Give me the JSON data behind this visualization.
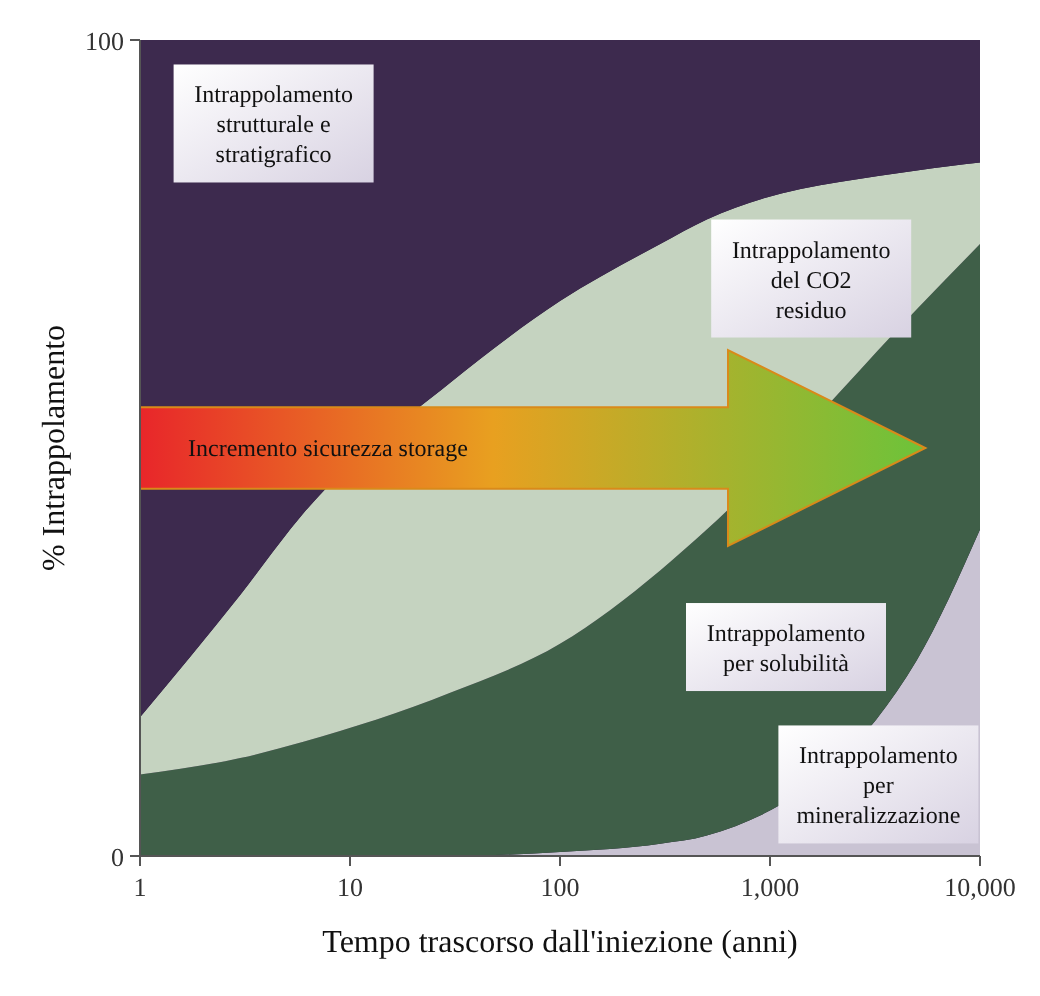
{
  "chart_data": {
    "type": "area",
    "stacked": true,
    "xlabel": "Tempo trascorso dall'iniezione (anni)",
    "ylabel": "% Intrappolamento",
    "x": [
      1,
      3,
      6,
      30,
      100,
      300,
      500,
      5000,
      10000
    ],
    "log": "x",
    "xlim": [
      1,
      10000
    ],
    "xticks": [
      1,
      10,
      100,
      {
        "value": 1000,
        "label": "1,000"
      },
      {
        "value": 10000,
        "label": "10,000"
      }
    ],
    "ylim": [
      0,
      100
    ],
    "yticks": [
      0,
      100
    ],
    "grid": false,
    "series": [
      {
        "name": "Intrappolamento per mineralizzazione",
        "color": "#c9c3d3",
        "values": [
          0,
          0,
          0,
          0,
          0.5,
          1.5,
          2.5,
          24,
          40
        ]
      },
      {
        "name": "Intrappolamento per solubilità",
        "color": "#3f5f48",
        "values": [
          10,
          12,
          14,
          20,
          25.5,
          33.5,
          37.5,
          43,
          35
        ]
      },
      {
        "name": "Intrappolamento del CO2 residuo",
        "color": "#c5d3c0",
        "values": [
          7,
          20,
          28,
          38,
          42,
          40,
          38,
          17,
          10
        ]
      },
      {
        "name": "Intrappolamento strutturale e stratigrafico",
        "color": "#3d2a4e",
        "values": [
          83,
          68,
          58,
          42,
          32,
          25,
          22,
          16,
          15
        ]
      }
    ],
    "annotations": [
      "Incremento sicurezza storage"
    ]
  }
}
